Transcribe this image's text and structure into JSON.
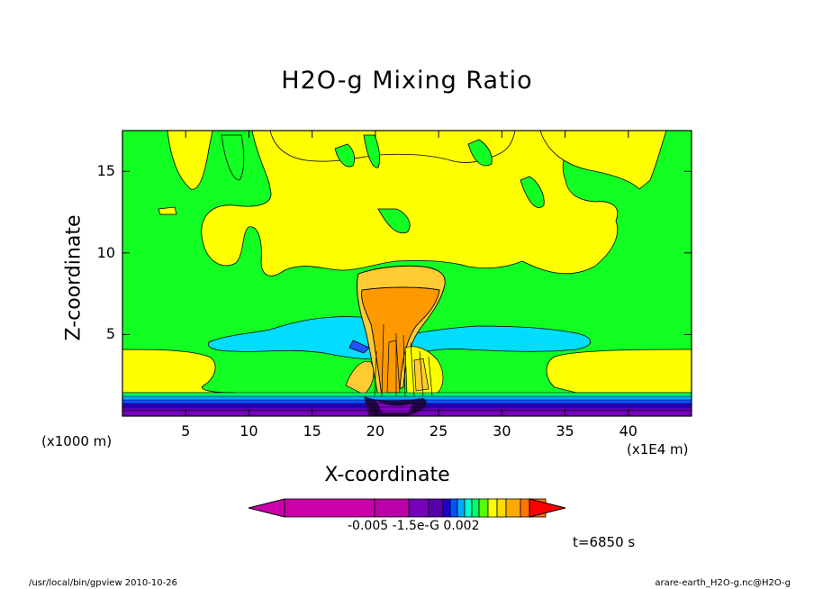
{
  "chart_data": {
    "type": "heatmap",
    "title": "H2O-g Mixing Ratio",
    "xlabel": "X-coordinate",
    "ylabel": "Z-coordinate",
    "x_unit_note": "(x1E4 m)",
    "y_unit_note": "(x1000 m)",
    "xlim": [
      0,
      45
    ],
    "ylim": [
      0,
      17.5
    ],
    "x_ticks": [
      5,
      10,
      15,
      20,
      25,
      30,
      35,
      40
    ],
    "y_ticks": [
      5,
      10,
      15
    ],
    "time_label": "t=6850 s",
    "colorbar": {
      "colors": [
        "#cc00aa",
        "#bb00aa",
        "#7700bb",
        "#5500aa",
        "#2200cc",
        "#0055ff",
        "#00aaff",
        "#00ffcc",
        "#00ff66",
        "#55ff00",
        "#ffff00",
        "#ffdd00",
        "#ffaa00",
        "#ff7700",
        "#ff0000"
      ],
      "labels": [
        "-0.005",
        "-1.5e-G",
        "0.002"
      ]
    },
    "palette": {
      "background_green": "#11ff22",
      "yellow": "#ffff00",
      "light_orange": "#ffcc33",
      "orange": "#ff9900",
      "cyan": "#00ddff",
      "blue": "#2255ff",
      "purple": "#8800cc",
      "dark_blue": "#220099"
    }
  },
  "footer": {
    "left": "/usr/local/bin/gpview   2010-10-26",
    "right": "arare-earth_H2O-g.nc@H2O-g"
  }
}
